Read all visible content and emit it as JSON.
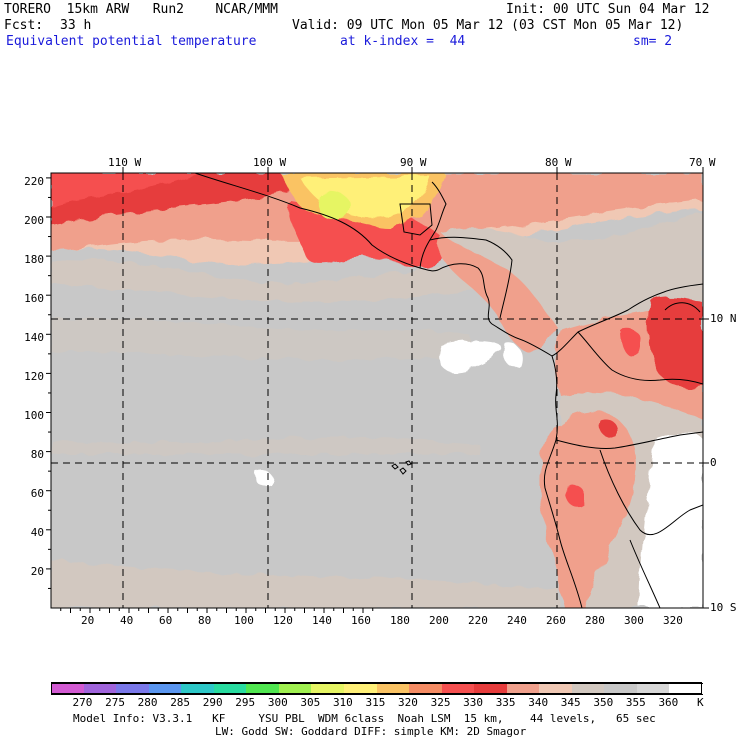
{
  "header": {
    "model": "TORERO  15km ARW   Run2    NCAR/MMM",
    "init": "Init: 00 UTC Sun 04 Mar 12",
    "fcst_label": "Fcst:",
    "fcst_value": "33 h",
    "valid": "Valid: 09 UTC Mon 05 Mar 12 (03 CST Mon 05 Mar 12)",
    "field": "Equivalent potential temperature",
    "level": "at k-index =  44",
    "smooth": "sm= 2"
  },
  "map": {
    "top_lon_labels": [
      "110 W",
      "100 W",
      "90 W",
      "80 W",
      "70 W"
    ],
    "right_lat_labels": [
      "10 N",
      "0",
      "10 S"
    ],
    "left_grid_labels": [
      "220",
      "200",
      "180",
      "160",
      "140",
      "120",
      "100",
      "80",
      "60",
      "40",
      "20"
    ],
    "bottom_grid_labels": [
      "20",
      "40",
      "60",
      "80",
      "100",
      "120",
      "140",
      "160",
      "180",
      "200",
      "220",
      "240",
      "260",
      "280",
      "300",
      "320"
    ]
  },
  "colorbar": {
    "colors": [
      "#d25ad2",
      "#a064dc",
      "#7a78ea",
      "#5a96f0",
      "#2dc8c8",
      "#28dca0",
      "#50e650",
      "#a0f050",
      "#e6f564",
      "#fff078",
      "#fac364",
      "#f58c64",
      "#f55050",
      "#e63c3c",
      "#f0a08c",
      "#f0c8b4",
      "#d2c8c0",
      "#c8c8c8",
      "#d7d7d7",
      "#ffffff"
    ],
    "labels": [
      "270",
      "275",
      "280",
      "285",
      "290",
      "295",
      "300",
      "305",
      "310",
      "315",
      "320",
      "325",
      "330",
      "335",
      "340",
      "345",
      "350",
      "355",
      "360"
    ],
    "unit": "K"
  },
  "footer": {
    "line1": "Model Info: V3.3.1   KF     YSU PBL  WDM 6class  Noah LSM  15 km,    44 levels,   65 sec",
    "line2": "LW: Godd SW: Goddard DIFF: simple KM: 2D Smagor"
  }
}
